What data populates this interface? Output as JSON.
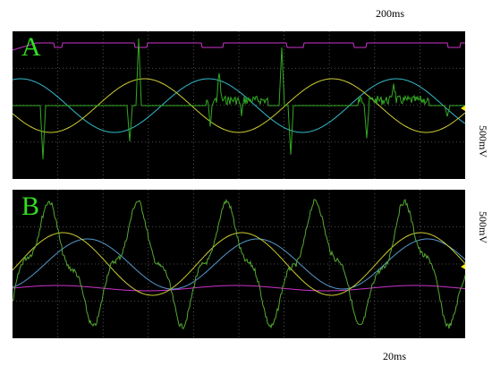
{
  "panels": [
    {
      "label": "A",
      "time_scale": "200ms",
      "volt_scale": "500mV"
    },
    {
      "label": "B",
      "volt_scale": "500mV",
      "time_scale": "20ms"
    }
  ]
}
